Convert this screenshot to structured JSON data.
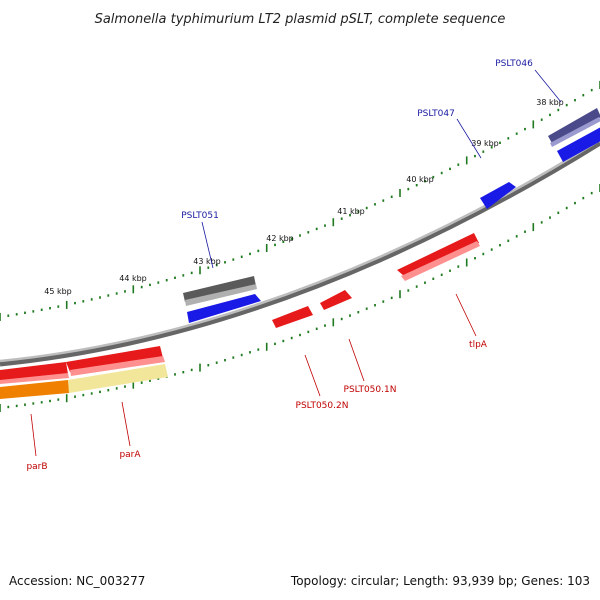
{
  "title": "Salmonella typhimurium LT2 plasmid pSLT, complete sequence",
  "ruler": {
    "labels": [
      "38 kbp",
      "39 kbp",
      "40 kbp",
      "41 kbp",
      "42 kbp",
      "43 kbp",
      "44 kbp",
      "45 kbp"
    ],
    "tick_color": "#1f7a1f"
  },
  "backbone_color": "#8a8a8a",
  "genes": [
    {
      "label": "PSLT046",
      "strand": "forward",
      "color": "#4a4a8a",
      "label_color": "#1a1aa0"
    },
    {
      "label": "PSLT047",
      "strand": "forward",
      "color": "#1a1ae6",
      "label_color": "#1a1aa0"
    },
    {
      "label": "PSLT051",
      "strand": "forward",
      "color": "#1a1ae6",
      "label_color": "#1a1aa0"
    },
    {
      "label": "",
      "strand": "forward",
      "color": "#5a5a5a",
      "label_color": ""
    },
    {
      "label": "tlpA",
      "strand": "reverse",
      "color": "#e61a1a",
      "label_color": "#c00000"
    },
    {
      "label": "PSLT050.1N",
      "strand": "reverse",
      "color": "#e61a1a",
      "label_color": "#c00000"
    },
    {
      "label": "PSLT050.2N",
      "strand": "reverse",
      "color": "#e61a1a",
      "label_color": "#c00000"
    },
    {
      "label": "parA",
      "strand": "reverse",
      "color": "#e61a1a",
      "label_color": "#c00000"
    },
    {
      "label": "parB",
      "strand": "reverse",
      "color": "#e61a1a",
      "label_color": "#c00000"
    },
    {
      "label": "",
      "strand": "reverse",
      "color": "#f2e69a",
      "label_color": ""
    },
    {
      "label": "",
      "strand": "reverse",
      "color": "#f08000",
      "label_color": ""
    }
  ],
  "footer": {
    "accession": "Accession: NC_003277",
    "summary": "Topology: circular; Length: 93,939 bp; Genes: 103"
  }
}
